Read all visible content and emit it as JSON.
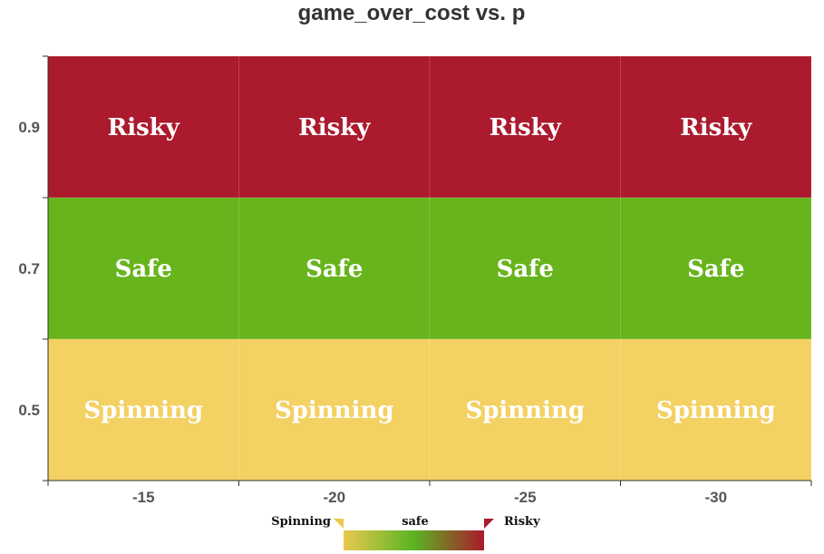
{
  "chart_data": {
    "type": "heatmap",
    "title": "game_over_cost vs. p",
    "xlabel": "",
    "ylabel": "",
    "x_categories": [
      "-15",
      "-20",
      "-25",
      "-30"
    ],
    "y_categories": [
      "0.9",
      "0.7",
      "0.5"
    ],
    "cells": [
      [
        "Risky",
        "Risky",
        "Risky",
        "Risky"
      ],
      [
        "Safe",
        "Safe",
        "Safe",
        "Safe"
      ],
      [
        "Spinning",
        "Spinning",
        "Spinning",
        "Spinning"
      ]
    ],
    "category_colors": {
      "Risky": "#ab1a2d",
      "Safe": "#68b41d",
      "Spinning": "#f3d162"
    },
    "legend": {
      "labels": [
        "Spinning",
        "safe",
        "Risky"
      ],
      "gradient": [
        "#e9c94f",
        "#5ab422",
        "#ab1a2d"
      ]
    }
  }
}
